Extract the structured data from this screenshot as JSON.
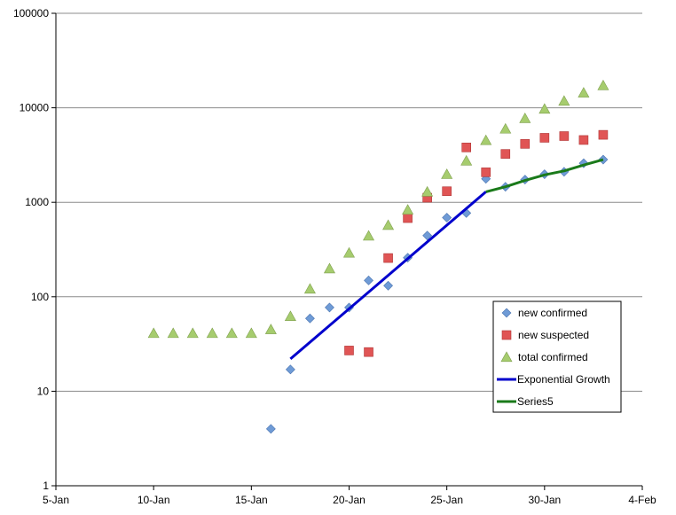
{
  "chart_data": {
    "type": "scatter",
    "title": "",
    "xlabel": "",
    "ylabel": "",
    "y_scale": "log",
    "ylim": [
      1,
      100000
    ],
    "xlim": [
      "2020-01-05",
      "2020-02-04"
    ],
    "x_ticks": [
      {
        "date": "2020-01-05",
        "label": "5-Jan"
      },
      {
        "date": "2020-01-10",
        "label": "10-Jan"
      },
      {
        "date": "2020-01-15",
        "label": "15-Jan"
      },
      {
        "date": "2020-01-20",
        "label": "20-Jan"
      },
      {
        "date": "2020-01-25",
        "label": "25-Jan"
      },
      {
        "date": "2020-01-30",
        "label": "30-Jan"
      },
      {
        "date": "2020-02-04",
        "label": "4-Feb"
      }
    ],
    "y_ticks": [
      {
        "value": 1,
        "label": "1"
      },
      {
        "value": 10,
        "label": "10"
      },
      {
        "value": 100,
        "label": "100"
      },
      {
        "value": 1000,
        "label": "1000"
      },
      {
        "value": 10000,
        "label": "10000"
      },
      {
        "value": 100000,
        "label": "100000"
      }
    ],
    "grid": "horizontal",
    "legend_position": "right",
    "series": [
      {
        "name": "new confirmed",
        "style": "scatter",
        "marker": "diamond",
        "color": "#6f9bd6",
        "points": [
          {
            "x": "2020-01-16",
            "y": 4
          },
          {
            "x": "2020-01-17",
            "y": 17
          },
          {
            "x": "2020-01-18",
            "y": 59
          },
          {
            "x": "2020-01-19",
            "y": 77
          },
          {
            "x": "2020-01-20",
            "y": 77
          },
          {
            "x": "2020-01-21",
            "y": 149
          },
          {
            "x": "2020-01-22",
            "y": 131
          },
          {
            "x": "2020-01-23",
            "y": 259
          },
          {
            "x": "2020-01-24",
            "y": 444
          },
          {
            "x": "2020-01-25",
            "y": 688
          },
          {
            "x": "2020-01-26",
            "y": 769
          },
          {
            "x": "2020-01-27",
            "y": 1771
          },
          {
            "x": "2020-01-28",
            "y": 1459
          },
          {
            "x": "2020-01-29",
            "y": 1737
          },
          {
            "x": "2020-01-30",
            "y": 1982
          },
          {
            "x": "2020-01-31",
            "y": 2102
          },
          {
            "x": "2020-02-01",
            "y": 2590
          },
          {
            "x": "2020-02-02",
            "y": 2829
          }
        ]
      },
      {
        "name": "new suspected",
        "style": "scatter",
        "marker": "square",
        "color": "#e05555",
        "points": [
          {
            "x": "2020-01-20",
            "y": 27
          },
          {
            "x": "2020-01-21",
            "y": 26
          },
          {
            "x": "2020-01-22",
            "y": 257
          },
          {
            "x": "2020-01-23",
            "y": 680
          },
          {
            "x": "2020-01-24",
            "y": 1118
          },
          {
            "x": "2020-01-25",
            "y": 1309
          },
          {
            "x": "2020-01-26",
            "y": 3806
          },
          {
            "x": "2020-01-27",
            "y": 2077
          },
          {
            "x": "2020-01-28",
            "y": 3248
          },
          {
            "x": "2020-01-29",
            "y": 4148
          },
          {
            "x": "2020-01-30",
            "y": 4812
          },
          {
            "x": "2020-01-31",
            "y": 5019
          },
          {
            "x": "2020-02-01",
            "y": 4562
          },
          {
            "x": "2020-02-02",
            "y": 5173
          }
        ]
      },
      {
        "name": "total confirmed",
        "style": "scatter",
        "marker": "triangle",
        "color": "#a6cc6e",
        "points": [
          {
            "x": "2020-01-10",
            "y": 41
          },
          {
            "x": "2020-01-11",
            "y": 41
          },
          {
            "x": "2020-01-12",
            "y": 41
          },
          {
            "x": "2020-01-13",
            "y": 41
          },
          {
            "x": "2020-01-14",
            "y": 41
          },
          {
            "x": "2020-01-15",
            "y": 41
          },
          {
            "x": "2020-01-16",
            "y": 45
          },
          {
            "x": "2020-01-17",
            "y": 62
          },
          {
            "x": "2020-01-18",
            "y": 121
          },
          {
            "x": "2020-01-19",
            "y": 198
          },
          {
            "x": "2020-01-20",
            "y": 291
          },
          {
            "x": "2020-01-21",
            "y": 440
          },
          {
            "x": "2020-01-22",
            "y": 571
          },
          {
            "x": "2020-01-23",
            "y": 830
          },
          {
            "x": "2020-01-24",
            "y": 1287
          },
          {
            "x": "2020-01-25",
            "y": 1975
          },
          {
            "x": "2020-01-26",
            "y": 2744
          },
          {
            "x": "2020-01-27",
            "y": 4515
          },
          {
            "x": "2020-01-28",
            "y": 5974
          },
          {
            "x": "2020-01-29",
            "y": 7711
          },
          {
            "x": "2020-01-30",
            "y": 9692
          },
          {
            "x": "2020-01-31",
            "y": 11791
          },
          {
            "x": "2020-02-01",
            "y": 14380
          },
          {
            "x": "2020-02-02",
            "y": 17205
          }
        ]
      },
      {
        "name": "Exponential Growth",
        "style": "line",
        "color": "#0000cc",
        "points": [
          {
            "x": "2020-01-17",
            "y": 22
          },
          {
            "x": "2020-01-27",
            "y": 1290
          }
        ]
      },
      {
        "name": "Series5",
        "style": "line",
        "color": "#1a7a1a",
        "points": [
          {
            "x": "2020-01-27",
            "y": 1290
          },
          {
            "x": "2020-01-28",
            "y": 1460
          },
          {
            "x": "2020-01-29",
            "y": 1700
          },
          {
            "x": "2020-01-30",
            "y": 1950
          },
          {
            "x": "2020-01-31",
            "y": 2150
          },
          {
            "x": "2020-02-01",
            "y": 2480
          },
          {
            "x": "2020-02-02",
            "y": 2829
          }
        ]
      }
    ]
  }
}
